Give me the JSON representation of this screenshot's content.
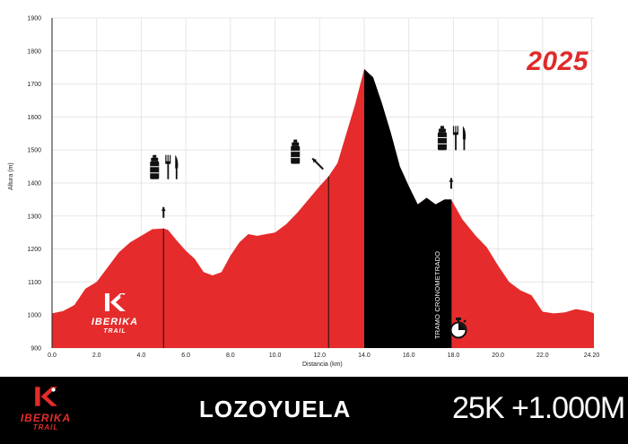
{
  "chart_data": {
    "type": "area",
    "title": "",
    "xlabel": "Distancia (km)",
    "ylabel": "Altura (m)",
    "xlim": [
      0,
      24.3
    ],
    "ylim": [
      900,
      1900
    ],
    "yticks": [
      "900",
      "1000",
      "1100",
      "1200",
      "1300",
      "1400",
      "1500",
      "1600",
      "1700",
      "1800",
      "1900"
    ],
    "xticks": [
      "0.0",
      "2.0",
      "4.0",
      "6.0",
      "8.0",
      "10.0",
      "12.0",
      "14.0",
      "16.0",
      "18.0",
      "20.0",
      "22.0",
      "24.20"
    ],
    "grid": true,
    "series": [
      {
        "x": [
          0,
          0.5,
          1.0,
          1.5,
          2.0,
          2.5,
          3.0,
          3.5,
          4.0,
          4.5,
          5.0,
          5.2,
          5.6,
          6.0,
          6.4,
          6.8,
          7.2,
          7.6,
          8.0,
          8.4,
          8.8,
          9.2,
          9.6,
          10.0,
          10.5,
          11.0,
          11.5,
          12.0,
          12.4,
          12.8,
          13.2,
          13.6,
          14.0,
          14.4,
          14.8,
          15.2,
          15.6,
          16.0,
          16.4,
          16.8,
          17.2,
          17.6,
          17.9,
          18.4,
          19.0,
          19.5,
          20.0,
          20.5,
          21.0,
          21.5,
          22.0,
          22.5,
          23.0,
          23.5,
          24.0,
          24.3
        ],
        "y": [
          1005,
          1012,
          1030,
          1080,
          1100,
          1145,
          1190,
          1220,
          1240,
          1260,
          1262,
          1258,
          1225,
          1195,
          1170,
          1130,
          1120,
          1130,
          1180,
          1220,
          1245,
          1240,
          1245,
          1250,
          1275,
          1310,
          1350,
          1390,
          1420,
          1460,
          1550,
          1640,
          1745,
          1720,
          1640,
          1550,
          1450,
          1390,
          1335,
          1355,
          1335,
          1350,
          1350,
          1290,
          1240,
          1205,
          1150,
          1100,
          1075,
          1060,
          1010,
          1005,
          1008,
          1018,
          1012,
          1005
        ]
      }
    ],
    "timed_section": {
      "from": 14.0,
      "to": 17.9,
      "label": "TRAMO CRONOMETRADO"
    },
    "markers": [
      {
        "x": 5.0,
        "type": "aid-station",
        "icons": [
          "bottle-icon",
          "cutlery-icon"
        ]
      },
      {
        "x": 12.4,
        "type": "water-point",
        "icons": [
          "bottle-icon"
        ]
      },
      {
        "x": 17.9,
        "type": "aid-station",
        "icons": [
          "bottle-icon",
          "cutlery-icon"
        ]
      }
    ],
    "colors": {
      "profile": "#e52b2b",
      "timed": "#000000",
      "grid": "#e6e6e6"
    }
  },
  "year": "2025",
  "logo": {
    "name": "IBERIKA",
    "sub": "TRAIL"
  },
  "footer": {
    "location": "LOZOYUELA",
    "distance": "25K +1.000M"
  }
}
